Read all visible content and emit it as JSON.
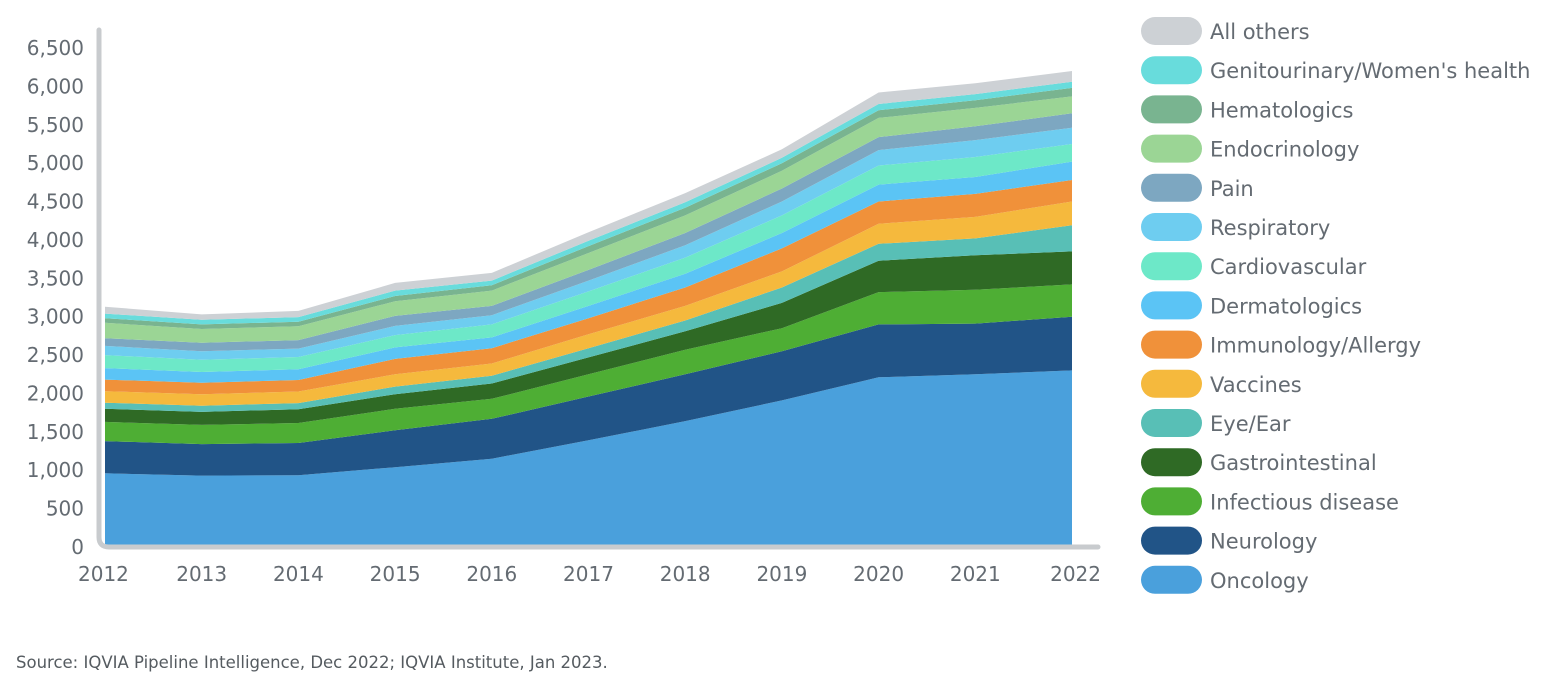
{
  "chart_data": {
    "type": "area",
    "stacked": true,
    "x": [
      "2012",
      "2013",
      "2014",
      "2015",
      "2016",
      "2017",
      "2018",
      "2019",
      "2020",
      "2021",
      "2022"
    ],
    "ylim": [
      0,
      6500
    ],
    "yticks": [
      "0",
      "500",
      "1,000",
      "1,500",
      "2,000",
      "2,500",
      "3,000",
      "3,500",
      "4,000",
      "4,500",
      "5,000",
      "5,500",
      "6,000",
      "6,500"
    ],
    "grid": false,
    "legend_position": "right",
    "series": [
      {
        "name": "Oncology",
        "color": "#4aa0dc",
        "values": [
          960,
          930,
          935,
          1040,
          1150,
          1390,
          1640,
          1910,
          2210,
          2250,
          2300
        ]
      },
      {
        "name": "Neurology",
        "color": "#215487",
        "values": [
          420,
          410,
          420,
          480,
          520,
          570,
          610,
          640,
          690,
          660,
          700
        ]
      },
      {
        "name": "Infectious disease",
        "color": "#4eae34",
        "values": [
          250,
          250,
          260,
          280,
          260,
          290,
          320,
          300,
          420,
          440,
          420
        ]
      },
      {
        "name": "Gastrointestinal",
        "color": "#2f6a25",
        "values": [
          170,
          170,
          180,
          190,
          200,
          220,
          240,
          330,
          410,
          450,
          430
        ]
      },
      {
        "name": "Eye/Ear",
        "color": "#58bfb6",
        "values": [
          80,
          80,
          80,
          100,
          100,
          120,
          140,
          200,
          220,
          220,
          340
        ]
      },
      {
        "name": "Vaccines",
        "color": "#f5b93d",
        "values": [
          150,
          150,
          150,
          160,
          160,
          180,
          190,
          210,
          260,
          280,
          310
        ]
      },
      {
        "name": "Immunology/Allergy",
        "color": "#f0913a",
        "values": [
          150,
          150,
          150,
          200,
          200,
          210,
          240,
          300,
          290,
          300,
          280
        ]
      },
      {
        "name": "Dermatologics",
        "color": "#5bc4f5",
        "values": [
          150,
          140,
          140,
          150,
          140,
          160,
          180,
          200,
          220,
          220,
          240
        ]
      },
      {
        "name": "Cardiovascular",
        "color": "#6de8c8",
        "values": [
          170,
          160,
          160,
          160,
          170,
          190,
          210,
          230,
          250,
          260,
          230
        ]
      },
      {
        "name": "Respiratory",
        "color": "#6ecdf0",
        "values": [
          120,
          110,
          110,
          120,
          120,
          140,
          160,
          180,
          200,
          220,
          210
        ]
      },
      {
        "name": "Pain",
        "color": "#7da7c1",
        "values": [
          100,
          110,
          110,
          130,
          120,
          140,
          160,
          170,
          170,
          180,
          190
        ]
      },
      {
        "name": "Endocrinology",
        "color": "#9bd595",
        "values": [
          200,
          180,
          180,
          190,
          200,
          220,
          230,
          230,
          250,
          240,
          220
        ]
      },
      {
        "name": "Hematologics",
        "color": "#79b490",
        "values": [
          60,
          60,
          60,
          70,
          70,
          90,
          100,
          100,
          100,
          100,
          110
        ]
      },
      {
        "name": "Genitourinary/Women's health",
        "color": "#68dcdc",
        "values": [
          60,
          60,
          60,
          70,
          60,
          70,
          70,
          70,
          80,
          80,
          80
        ]
      },
      {
        "name": "All others",
        "color": "#cdd1d5",
        "values": [
          90,
          70,
          80,
          100,
          100,
          110,
          120,
          110,
          150,
          140,
          140
        ]
      }
    ]
  },
  "source": "Source: IQVIA Pipeline Intelligence, Dec 2022; IQVIA Institute, Jan 2023."
}
